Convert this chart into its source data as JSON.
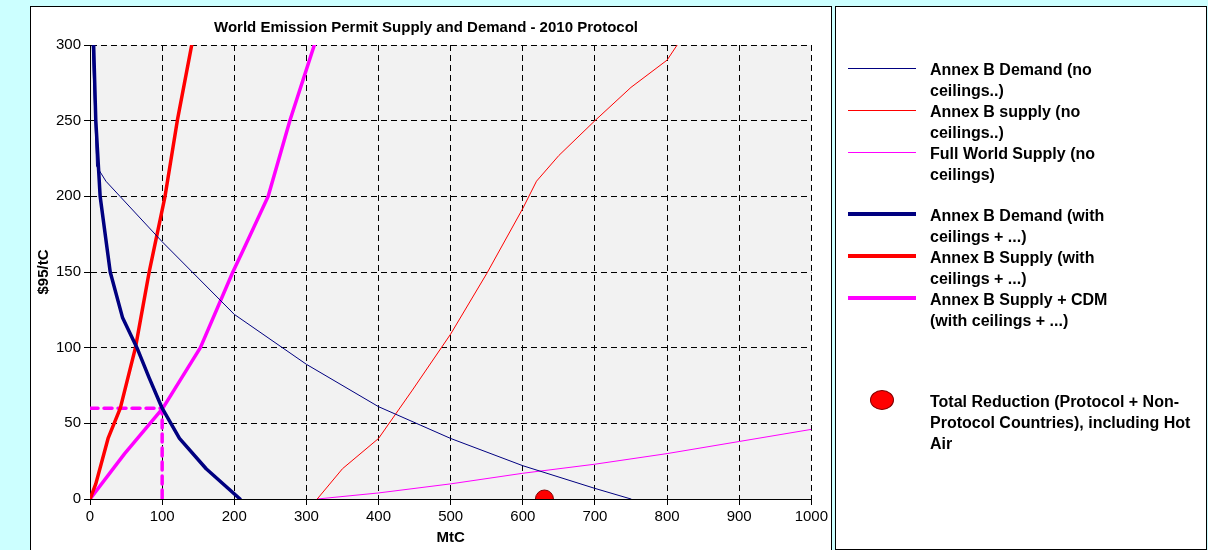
{
  "chart_data": {
    "type": "line",
    "title": "World Emission Permit Supply and Demand - 2010 Protocol",
    "xlabel": "MtC",
    "ylabel": "$95/tC",
    "xlim": [
      0,
      1000
    ],
    "xticks": [
      0,
      100,
      200,
      300,
      400,
      500,
      600,
      700,
      800,
      900,
      1000
    ],
    "ylim": [
      0,
      300
    ],
    "yticks": [
      0,
      50,
      100,
      150,
      200,
      250,
      300
    ],
    "grid": true,
    "legend": "right",
    "series": [
      {
        "name": "Annex B Demand (no ceilings..)",
        "color": "#000080",
        "x": [
          3,
          7,
          9,
          22,
          100,
          200,
          300,
          400,
          500,
          600,
          700,
          750
        ],
        "values": [
          300,
          250,
          220,
          210,
          170,
          122,
          89,
          61,
          40,
          22,
          7,
          0
        ]
      },
      {
        "name": "Annex B supply (no ceilings..)",
        "color": "#ff0000",
        "x": [
          315,
          350,
          400,
          447,
          500,
          550,
          600,
          619,
          650,
          700,
          750,
          800,
          814
        ],
        "values": [
          0,
          20,
          40,
          72,
          109,
          149,
          192,
          210,
          227,
          250,
          272,
          290,
          300
        ]
      },
      {
        "name": "Full World Supply (no ceilings)",
        "color": "#ff00ff",
        "x": [
          315,
          400,
          500,
          600,
          700,
          800,
          900,
          1000
        ],
        "values": [
          0,
          4,
          10,
          17,
          23,
          30,
          38,
          46
        ]
      },
      {
        "name": "Annex B Demand (with ceilings + ...)",
        "color": "#000080",
        "x": [
          5,
          8,
          14,
          28,
          45,
          65,
          82,
          100,
          124,
          161,
          208
        ],
        "values": [
          300,
          250,
          200,
          150,
          120,
          100,
          80,
          60,
          40,
          20,
          0
        ]
      },
      {
        "name": "Annex B Supply (with ceilings + ...)",
        "color": "#ff0000",
        "x": [
          0,
          8,
          25,
          42,
          63,
          82,
          104,
          121,
          141
        ],
        "values": [
          0,
          10,
          40,
          60,
          100,
          150,
          200,
          250,
          300
        ]
      },
      {
        "name": "Annex B Supply + CDM (with ceilings + ...)",
        "color": "#ff00ff",
        "x": [
          0,
          48,
          101,
          153,
          198,
          208,
          247,
          277,
          311
        ],
        "values": [
          0,
          30,
          60,
          100,
          150,
          160,
          200,
          250,
          300
        ]
      },
      {
        "color": "#ff00ff",
        "line_style": "dashed",
        "x": [
          0,
          100,
          100
        ],
        "values": [
          60,
          60,
          0
        ]
      },
      {
        "name": "Total Reduction (Protocol + Non-Protocol Countries), including Hot Air",
        "type": "scatter",
        "marker": "circle",
        "color": "#ff0000",
        "x": [
          630
        ],
        "values": [
          0
        ]
      }
    ]
  }
}
